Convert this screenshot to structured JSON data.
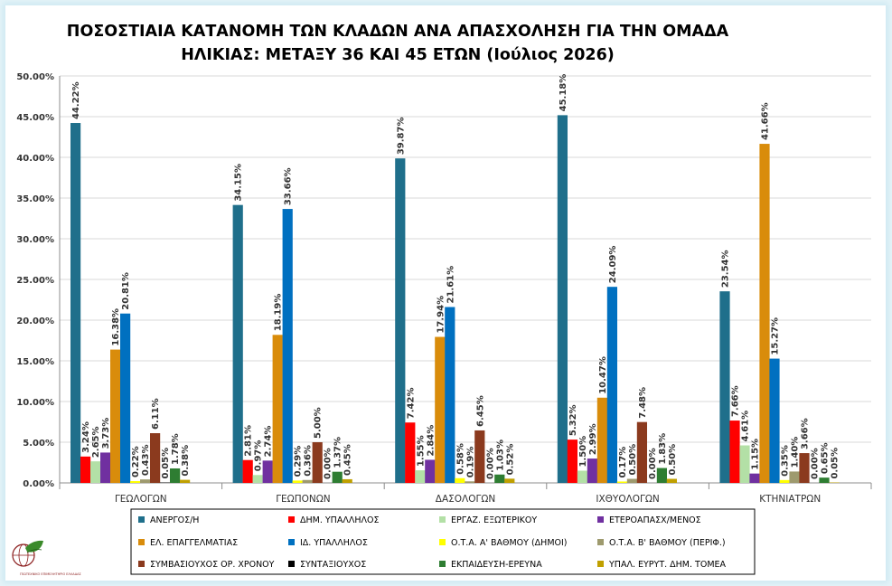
{
  "chart_data": {
    "type": "bar",
    "title": "ΠΟΣΟΣΤΙΑΙΑ ΚΑΤΑΝΟΜΗ ΤΩΝ ΚΛΑΔΩΝ ΑΝΑ ΑΠΑΣΧΟΛΗΣΗ ΓΙΑ ΤΗΝ ΟΜΑΔΑ ΗΛΙΚΙΑΣ: ΜΕΤΑΞΥ 36 ΚΑΙ 45 ΕΤΩΝ (Ιούλιος 2026)",
    "title_lines": [
      "ΠΟΣΟΣΤΙΑΙΑ ΚΑΤΑΝΟΜΗ ΤΩΝ ΚΛΑΔΩΝ ΑΝΑ ΑΠΑΣΧΟΛΗΣΗ ΓΙΑ ΤΗΝ ΟΜΑΔΑ",
      "ΗΛΙΚΙΑΣ: ΜΕΤΑΞΥ 36 ΚΑΙ 45 ΕΤΩΝ (Ιούλιος 2026)"
    ],
    "categories": [
      "ΓΕΩΛΟΓΩΝ",
      "ΓΕΩΠΟΝΩΝ",
      "ΔΑΣΟΛΟΓΩΝ",
      "ΙΧΘΥΟΛΟΓΩΝ",
      "ΚΤΗΝΙΑΤΡΩΝ"
    ],
    "ylim": [
      0,
      50
    ],
    "yticks": [
      "0.00%",
      "5.00%",
      "10.00%",
      "15.00%",
      "20.00%",
      "25.00%",
      "30.00%",
      "35.00%",
      "40.00%",
      "45.00%",
      "50.00%"
    ],
    "grid": true,
    "legend_position": "bottom",
    "series": [
      {
        "name": "ΑΝΕΡΓΟΣ/Η",
        "color": "#1f6f8b",
        "values": [
          44.22,
          34.15,
          39.87,
          45.18,
          23.54
        ],
        "labels": [
          "44.22%",
          "34.15%",
          "39.87%",
          "45.18%",
          "23.54%"
        ]
      },
      {
        "name": "ΔΗΜ. ΥΠΑΛΛΗΛΟΣ",
        "color": "#ff0000",
        "values": [
          3.24,
          2.81,
          7.42,
          5.32,
          7.66
        ],
        "labels": [
          "3.24%",
          "2.81%",
          "7.42%",
          "5.32%",
          "7.66%"
        ]
      },
      {
        "name": "ΕΡΓΑΖ. ΕΞΩΤΕΡΙΚΟΥ",
        "color": "#b3e0a6",
        "values": [
          2.65,
          0.97,
          1.55,
          1.5,
          4.61
        ],
        "labels": [
          "2.65%",
          "0.97%",
          "1.55%",
          "1.50%",
          "4.61%"
        ]
      },
      {
        "name": "ΕΤΕΡΟΑΠΑΣΧ/ΜΕΝΟΣ",
        "color": "#7030a0",
        "values": [
          3.73,
          2.74,
          2.84,
          2.99,
          1.15
        ],
        "labels": [
          "3.73%",
          "2.74%",
          "2.84%",
          "2.99%",
          "1.15%"
        ]
      },
      {
        "name": "ΕΛ. ΕΠΑΓΓΕΛΜΑΤΙΑΣ",
        "color": "#d98c0b",
        "values": [
          16.38,
          18.19,
          17.94,
          10.47,
          41.66
        ],
        "labels": [
          "16.38%",
          "18.19%",
          "17.94%",
          "10.47%",
          "41.66%"
        ]
      },
      {
        "name": "ΙΔ. ΥΠΑΛΛΗΛΟΣ",
        "color": "#0070c0",
        "values": [
          20.81,
          33.66,
          21.61,
          24.09,
          15.27
        ],
        "labels": [
          "20.81%",
          "33.66%",
          "21.61%",
          "24.09%",
          "15.27%"
        ]
      },
      {
        "name": "Ο.Τ.Α. Α' ΒΑΘΜΟΥ (ΔΗΜΟΙ)",
        "color": "#ffff00",
        "values": [
          0.22,
          0.29,
          0.58,
          0.17,
          0.35
        ],
        "labels": [
          "0.22%",
          "0.29%",
          "0.58%",
          "0.17%",
          "0.35%"
        ]
      },
      {
        "name": "Ο.Τ.Α. Β' ΒΑΘΜΟΥ (ΠΕΡΙΦ.)",
        "color": "#9e9a6e",
        "values": [
          0.43,
          0.36,
          0.19,
          0.5,
          1.4
        ],
        "labels": [
          "0.43%",
          "0.36%",
          "0.19%",
          "0.50%",
          "1.40%"
        ]
      },
      {
        "name": "ΣΥΜΒΑΣΙΟΥΧΟΣ ΟΡ. ΧΡΟΝΟΥ",
        "color": "#8b3a1e",
        "values": [
          6.11,
          5.0,
          6.45,
          7.48,
          3.66
        ],
        "labels": [
          "6.11%",
          "5.00%",
          "6.45%",
          "7.48%",
          "3.66%"
        ]
      },
      {
        "name": "ΣΥΝΤΑΞΙΟΥΧΟΣ",
        "color": "#000000",
        "values": [
          0.05,
          0.0,
          0.0,
          0.0,
          0.0
        ],
        "labels": [
          "0.05%",
          "0.00%",
          "0.00%",
          "0.00%",
          "0.00%"
        ]
      },
      {
        "name": "ΕΚΠΑΙΔΕΥΣΗ-ΕΡΕΥΝΑ",
        "color": "#2e7d32",
        "values": [
          1.78,
          1.37,
          1.03,
          1.83,
          0.65
        ],
        "labels": [
          "1.78%",
          "1.37%",
          "1.03%",
          "1.83%",
          "0.65%"
        ]
      },
      {
        "name": "ΥΠΑΛ. ΕΥΡΥΤ. ΔΗΜ. ΤΟΜΕΑ",
        "color": "#c0a000",
        "values": [
          0.38,
          0.45,
          0.52,
          0.5,
          0.05
        ],
        "labels": [
          "0.38%",
          "0.45%",
          "0.52%",
          "0.50%",
          "0.05%"
        ]
      }
    ]
  },
  "logo": {
    "icon": "leaf-globe-logo-icon",
    "text": "ΓΕΩΤΕΧΝΙΚΟ ΕΠΙΜΕΛΗΤΗΡΙΟ ΕΛΛΑΔΑΣ"
  }
}
